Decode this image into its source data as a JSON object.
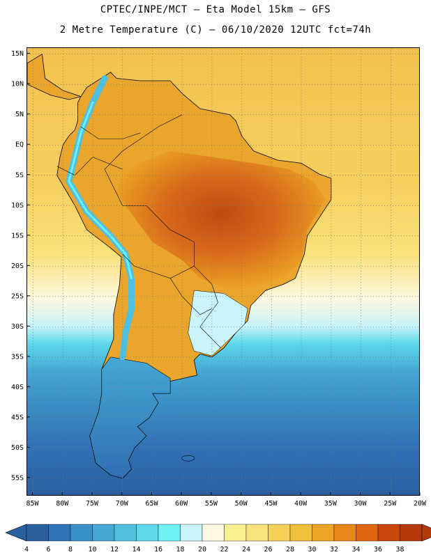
{
  "header": {
    "line1": "CPTEC/INPE/MCT –  Eta Model 15km – GFS",
    "line2": "2 Metre Temperature (C) – 06/10/2020 12UTC fct=74h"
  },
  "map": {
    "lon_range": [
      -86,
      -20
    ],
    "lat_range": [
      -58,
      16
    ],
    "lat_ticks": [
      {
        "value": 15,
        "label": "15N"
      },
      {
        "value": 10,
        "label": "10N"
      },
      {
        "value": 5,
        "label": "5N"
      },
      {
        "value": 0,
        "label": "EQ"
      },
      {
        "value": -5,
        "label": "5S"
      },
      {
        "value": -10,
        "label": "10S"
      },
      {
        "value": -15,
        "label": "15S"
      },
      {
        "value": -20,
        "label": "20S"
      },
      {
        "value": -25,
        "label": "25S"
      },
      {
        "value": -30,
        "label": "30S"
      },
      {
        "value": -35,
        "label": "35S"
      },
      {
        "value": -40,
        "label": "40S"
      },
      {
        "value": -45,
        "label": "45S"
      },
      {
        "value": -50,
        "label": "50S"
      },
      {
        "value": -55,
        "label": "55S"
      }
    ],
    "lon_ticks": [
      {
        "value": -85,
        "label": "85W"
      },
      {
        "value": -80,
        "label": "80W"
      },
      {
        "value": -75,
        "label": "75W"
      },
      {
        "value": -70,
        "label": "70W"
      },
      {
        "value": -65,
        "label": "65W"
      },
      {
        "value": -60,
        "label": "60W"
      },
      {
        "value": -55,
        "label": "55W"
      },
      {
        "value": -50,
        "label": "50W"
      },
      {
        "value": -45,
        "label": "45W"
      },
      {
        "value": -40,
        "label": "40W"
      },
      {
        "value": -35,
        "label": "35W"
      },
      {
        "value": -30,
        "label": "30W"
      },
      {
        "value": -25,
        "label": "25W"
      },
      {
        "value": -20,
        "label": "20W"
      }
    ]
  },
  "legend": {
    "labels": [
      "4",
      "6",
      "8",
      "10",
      "12",
      "14",
      "16",
      "18",
      "20",
      "22",
      "24",
      "26",
      "28",
      "30",
      "32",
      "34",
      "36",
      "38"
    ],
    "colors": [
      "#2a5fa0",
      "#2f74b5",
      "#3a90c8",
      "#45a8d5",
      "#4fc0e0",
      "#5cd8ea",
      "#6ef0f5",
      "#c8f4fa",
      "#fdf8e0",
      "#fcf190",
      "#fae27a",
      "#f5d05a",
      "#f1bf3c",
      "#eca424",
      "#e8861a",
      "#df6510",
      "#c8460a",
      "#b53a0a"
    ],
    "low_end_color": "#2a5fa0",
    "high_end_color": "#b53a0a"
  },
  "colors": {
    "ocean_north": "#f2c24e",
    "ocean_south": "#2a62a8",
    "land_hot": "#c8561a",
    "land_warm": "#e8a030",
    "andes": "#4fc0e0"
  }
}
